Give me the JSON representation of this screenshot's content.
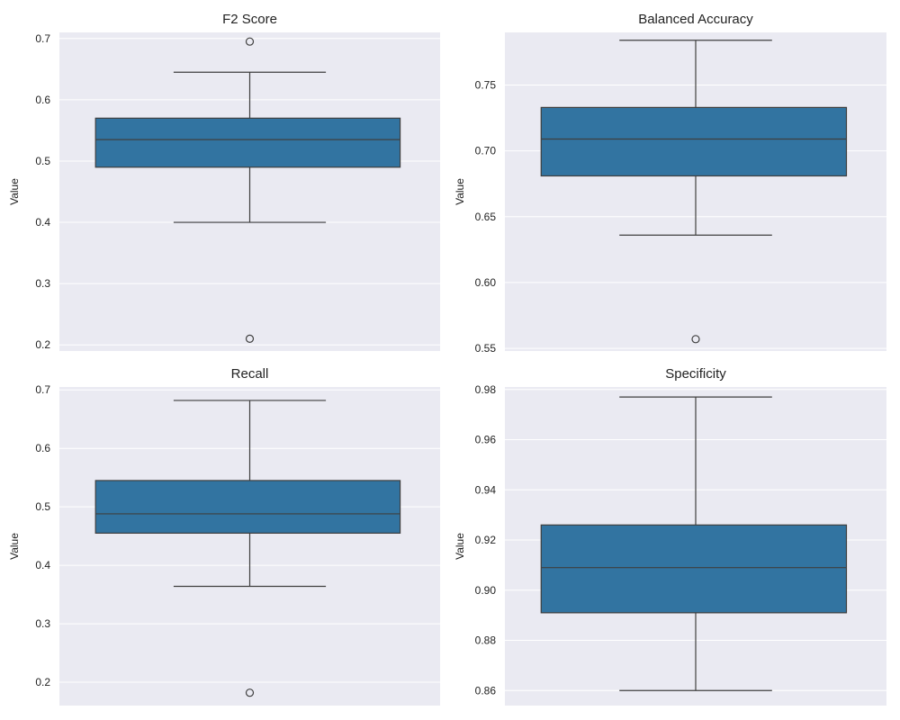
{
  "chart_data": [
    {
      "type": "box",
      "title": "F2 Score",
      "ylabel": "Value",
      "ylim": [
        0.19,
        0.71
      ],
      "yticks": [
        "0.2",
        "0.3",
        "0.4",
        "0.5",
        "0.6",
        "0.7"
      ],
      "box": {
        "whisker_low": 0.4,
        "q1": 0.49,
        "median": 0.535,
        "q3": 0.57,
        "whisker_high": 0.645
      },
      "outliers": [
        0.695,
        0.21
      ]
    },
    {
      "type": "box",
      "title": "Balanced Accuracy",
      "ylabel": "Value",
      "ylim": [
        0.548,
        0.79
      ],
      "yticks": [
        "0.55",
        "0.60",
        "0.65",
        "0.70",
        "0.75"
      ],
      "box": {
        "whisker_low": 0.636,
        "q1": 0.681,
        "median": 0.709,
        "q3": 0.733,
        "whisker_high": 0.784
      },
      "outliers": [
        0.557
      ]
    },
    {
      "type": "box",
      "title": "Recall",
      "ylabel": "Value",
      "ylim": [
        0.16,
        0.705
      ],
      "yticks": [
        "0.2",
        "0.3",
        "0.4",
        "0.5",
        "0.6",
        "0.7"
      ],
      "box": {
        "whisker_low": 0.364,
        "q1": 0.455,
        "median": 0.488,
        "q3": 0.545,
        "whisker_high": 0.682
      },
      "outliers": [
        0.182
      ]
    },
    {
      "type": "box",
      "title": "Specificity",
      "ylabel": "Value",
      "ylim": [
        0.854,
        0.981
      ],
      "yticks": [
        "0.86",
        "0.88",
        "0.90",
        "0.92",
        "0.94",
        "0.96",
        "0.98"
      ],
      "box": {
        "whisker_low": 0.86,
        "q1": 0.891,
        "median": 0.909,
        "q3": 0.926,
        "whisker_high": 0.977
      },
      "outliers": []
    }
  ],
  "style": {
    "background": "#eaeaf2",
    "grid": "#ffffff",
    "box_fill": "#3274a1",
    "line": "#3f3f3f"
  }
}
